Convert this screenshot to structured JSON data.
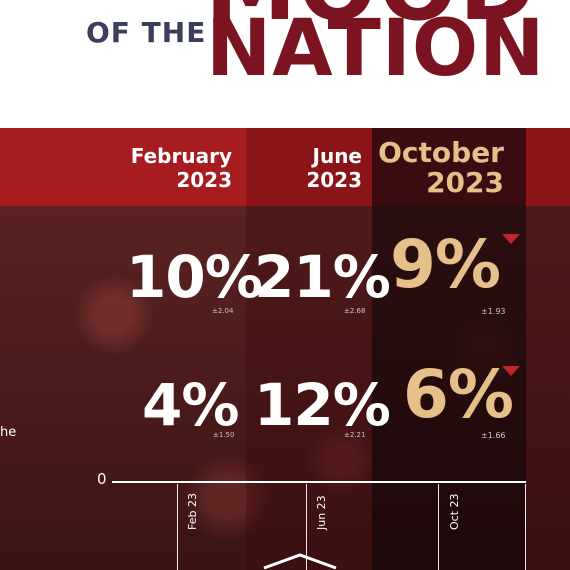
{
  "header": {
    "title_top_clipped": "MOOD",
    "of_the": "OF THE",
    "nation": "NATION"
  },
  "columns": [
    {
      "line1": "February",
      "line2": "2023"
    },
    {
      "line1": "June",
      "line2": "2023"
    },
    {
      "line1": "October",
      "line2": "2023"
    }
  ],
  "rows": [
    {
      "values": [
        "10%",
        "21%",
        "9%"
      ],
      "moe": [
        "±2.04",
        "±2.68",
        "±1.93"
      ]
    },
    {
      "values": [
        "4%",
        "12%",
        "6%"
      ],
      "moe": [
        "±1.50",
        "±2.21",
        "±1.66"
      ]
    }
  ],
  "left_cut_text": "he",
  "axis": {
    "zero": "0",
    "ticks": [
      "Feb 23",
      "Jun 23",
      "Oct 23"
    ]
  },
  "colors": {
    "brand": "#7b1420",
    "accent_gold": "#e6c08a",
    "band_red": "#a61c1f",
    "down_marker": "#c0262c"
  }
}
